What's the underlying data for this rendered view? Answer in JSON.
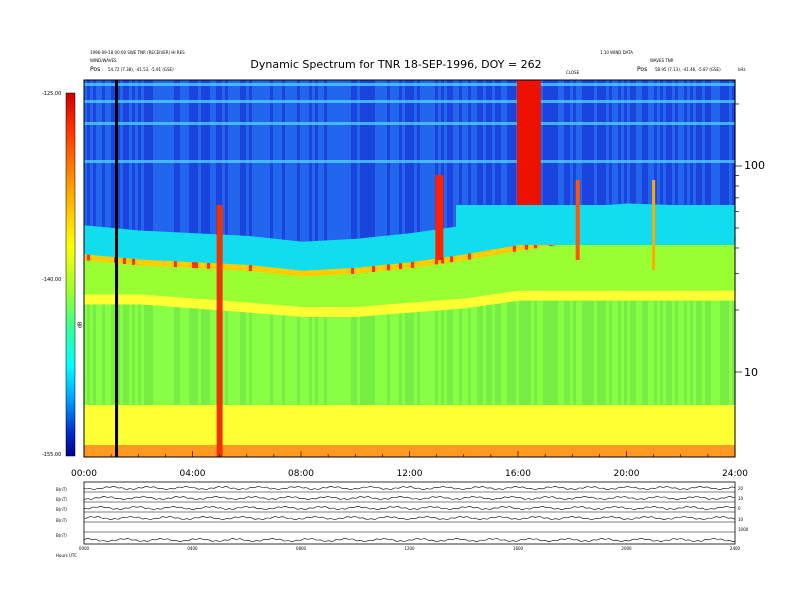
{
  "header": {
    "title": "Dynamic Spectrum for TNR 18-SEP-1996, DOY = 262",
    "left_line1": "1996-09-18 00:00 SWE TNR (RECEIVER) HI RES",
    "left_line2": "WIND/WAVES",
    "left_line3_label": "Pos",
    "left_line3_value": "54.72 (7.38), -41.53, -5.91 (GSE)",
    "right_line1": "1.10 WIND DATA",
    "right_line2": "WAVES TNR",
    "right_line3_label": "Pos",
    "right_line3_value": "58.95 (7.13), -41.46, -5.87 (GSE)",
    "right_unit": "kHz",
    "center_marker": "CLOSE"
  },
  "colorbar": {
    "labels": [
      "-125.00",
      "-140.00",
      "-155.00"
    ],
    "axis_label": "dB",
    "colors": [
      "#cc0000",
      "#ff3300",
      "#ff9900",
      "#ffff00",
      "#99ff33",
      "#33ff99",
      "#00ffff",
      "#0099ff",
      "#0033cc",
      "#00008b"
    ]
  },
  "chart_data": {
    "type": "heatmap",
    "title": "Dynamic Spectrum for TNR 18-SEP-1996, DOY = 262",
    "x_ticks": [
      "00:00",
      "04:00",
      "08:00",
      "12:00",
      "16:00",
      "20:00",
      "24:00"
    ],
    "x_range_hours": [
      0,
      24
    ],
    "y_scale": "log",
    "y_ticks": [
      10,
      100
    ],
    "y_unit": "kHz",
    "color_range_db": [
      -155,
      -125
    ],
    "color_ticks_db": [
      -125,
      -140,
      -155
    ],
    "features": {
      "plasma_line_upper_khz": [
        [
          0,
          36
        ],
        [
          2,
          34
        ],
        [
          4,
          33
        ],
        [
          6,
          32
        ],
        [
          8,
          30
        ],
        [
          10,
          31
        ],
        [
          12,
          33
        ],
        [
          14,
          36
        ],
        [
          16,
          40
        ],
        [
          18,
          44
        ],
        [
          20,
          46
        ],
        [
          24,
          44
        ]
      ],
      "plasma_line_lower_khz": [
        [
          0,
          23
        ],
        [
          2,
          23
        ],
        [
          4,
          22
        ],
        [
          6,
          21
        ],
        [
          8,
          20
        ],
        [
          10,
          20
        ],
        [
          12,
          21
        ],
        [
          14,
          22
        ],
        [
          16,
          24
        ],
        [
          18,
          24
        ],
        [
          20,
          24
        ],
        [
          24,
          24
        ]
      ],
      "bursts_hours": [
        1.2,
        5.0,
        13.1,
        16.4,
        18.2,
        21.0
      ],
      "data_gap_hour": 1.2
    }
  },
  "lower_panels": {
    "labels": [
      "B(nT)",
      "B(nT)",
      "B(nT)",
      "B(nT)",
      "B(nT)"
    ],
    "right_labels": [
      "20",
      "10",
      "0",
      "10",
      "1000"
    ],
    "x_ticks": [
      "0000",
      "0400",
      "0800",
      "1200",
      "1600",
      "2000",
      "2400"
    ],
    "footer_label": "Hours UTC"
  }
}
